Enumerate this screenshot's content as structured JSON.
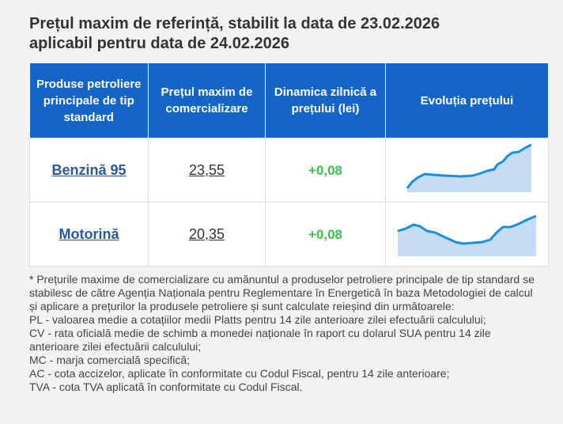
{
  "header": {
    "title_line1": "Prețul maxim de referință, stabilit la data de 23.02.2026",
    "title_line2": "aplicabil pentru data de 24.02.2026"
  },
  "table": {
    "columns": [
      "Produse petroliere principale de tip standard",
      "Prețul maxim de comercializare",
      "Dinamica zilnică a prețului (lei)",
      "Evoluția prețului"
    ],
    "rows": [
      [
        "Benzină 95",
        "23,55",
        "+0,08"
      ],
      [
        "Motorină",
        "20,35",
        "+0,08"
      ]
    ]
  },
  "footnote": [
    "* Prețurile maxime de comercializare cu amănuntul a produselor petroliere principale de tip standard se stabilesc de către Agenția Naționala pentru Reglementare în Energetică în baza Metodologiei de calcul și aplicare a prețurilor la produsele petroliere și sunt calculate reieșind din următoarele:",
    "PL - valoarea medie a cotațiilor medii Platts pentru 14 zile anterioare zilei efectuării calculului;",
    "CV - rata oficială medie de schimb a monedei naționale în raport cu dolarul SUA pentru 14 zile anterioare zilei efectuării calculului;",
    "MC - marja comercială specifică;",
    "AC - cota accizelor, aplicate în conformitate cu Codul Fiscal, pentru 14 zile anterioare;",
    "TVA - cota TVA aplicată în conformitate cu Codul Fiscal."
  ]
}
